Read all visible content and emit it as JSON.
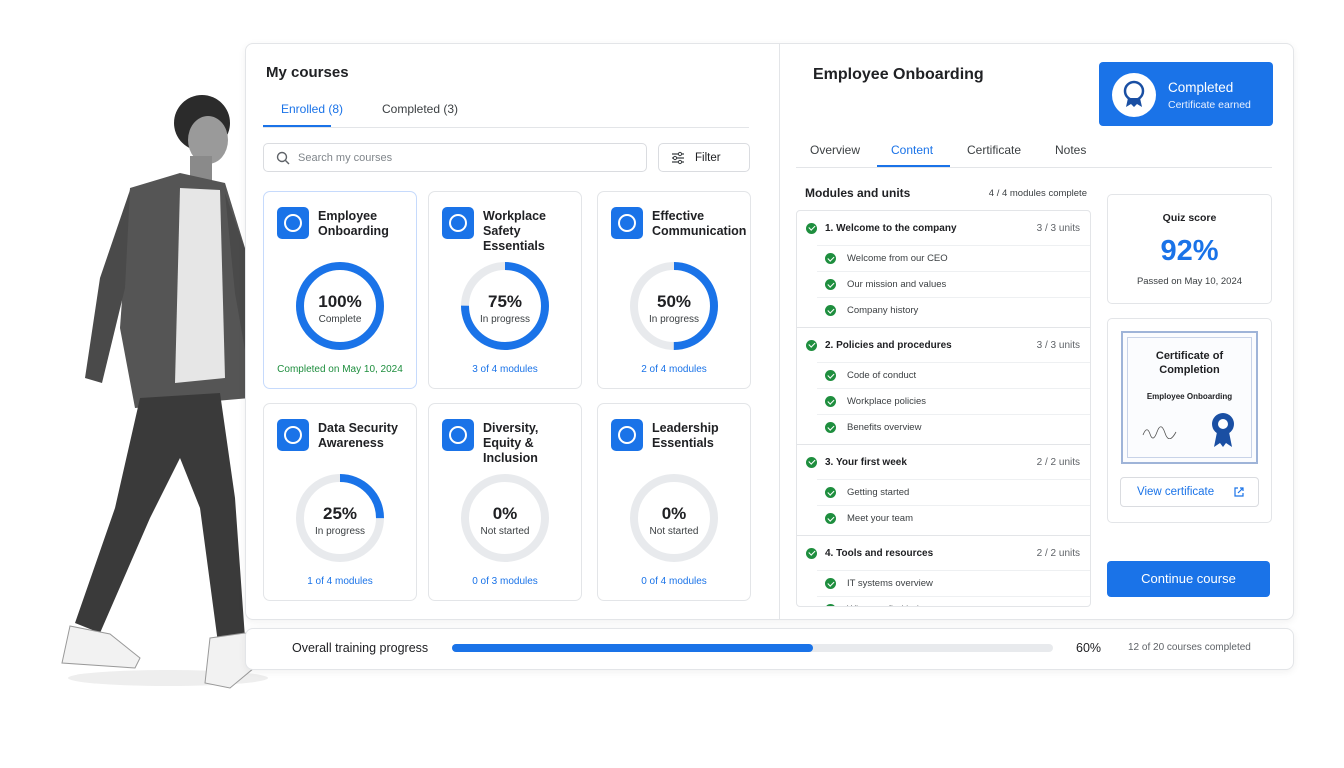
{
  "courses_panel": {
    "title": "My courses",
    "tabs": [
      "Enrolled (8)",
      "Completed (3)"
    ],
    "search_placeholder": "Search my courses",
    "filter": "Filter",
    "courses": [
      {
        "title": "Employee Onboarding",
        "percent": {
          "value": 100,
          "label": "100%"
        },
        "status": "Complete",
        "footer": "Completed on May 10, 2024"
      },
      {
        "title": "Workplace Safety Essentials",
        "percent": {
          "value": 75,
          "label": "75%"
        },
        "status": "In progress",
        "footer": "3 of 4 modules"
      },
      {
        "title": "Effective Communication",
        "percent": {
          "value": 50,
          "label": "50%"
        },
        "status": "In progress",
        "footer": "2 of 4 modules"
      },
      {
        "title": "Data Security Awareness",
        "percent": {
          "value": 25,
          "label": "25%"
        },
        "status": "In progress",
        "footer": "1 of 4 modules"
      },
      {
        "title": "Diversity, Equity & Inclusion",
        "percent": {
          "value": 0,
          "label": "0%"
        },
        "status": "Not started",
        "footer": "0 of 3 modules"
      },
      {
        "title": "Leadership Essentials",
        "percent": {
          "value": 0,
          "label": "0%"
        },
        "status": "Not started",
        "footer": "0 of 4 modules"
      }
    ]
  },
  "detail": {
    "title": "Employee Onboarding",
    "badge": {
      "title": "Completed",
      "subtitle": "Certificate earned"
    },
    "tabs": [
      "Overview",
      "Content",
      "Certificate",
      "Notes"
    ],
    "active_tab": 1,
    "modules_heading": "Modules and units",
    "modules_summary": "4 / 4 modules complete",
    "modules": [
      {
        "title": "1. Welcome to the company",
        "count": "3 / 3 units",
        "units": [
          "Welcome from our CEO",
          "Our mission and values",
          "Company history"
        ]
      },
      {
        "title": "2. Policies and procedures",
        "count": "3 / 3 units",
        "units": [
          "Code of conduct",
          "Workplace policies",
          "Benefits overview"
        ]
      },
      {
        "title": "3. Your first week",
        "count": "2 / 2 units",
        "units": [
          "Getting started",
          "Meet your team"
        ]
      },
      {
        "title": "4. Tools and resources",
        "count": "2 / 2 units",
        "units": [
          "IT systems overview",
          "Where to find help"
        ]
      }
    ],
    "quiz": {
      "label": "Quiz score",
      "score": "92%",
      "note": "Passed on May 10, 2024"
    },
    "certificate": {
      "title": "Certificate of Completion",
      "course": "Employee Onboarding",
      "button": "View certificate"
    },
    "continue": "Continue course"
  },
  "overall": {
    "label": "Overall training progress",
    "percent": {
      "value": 60,
      "label": "60%"
    },
    "summary": "12 of 20 courses completed"
  }
}
